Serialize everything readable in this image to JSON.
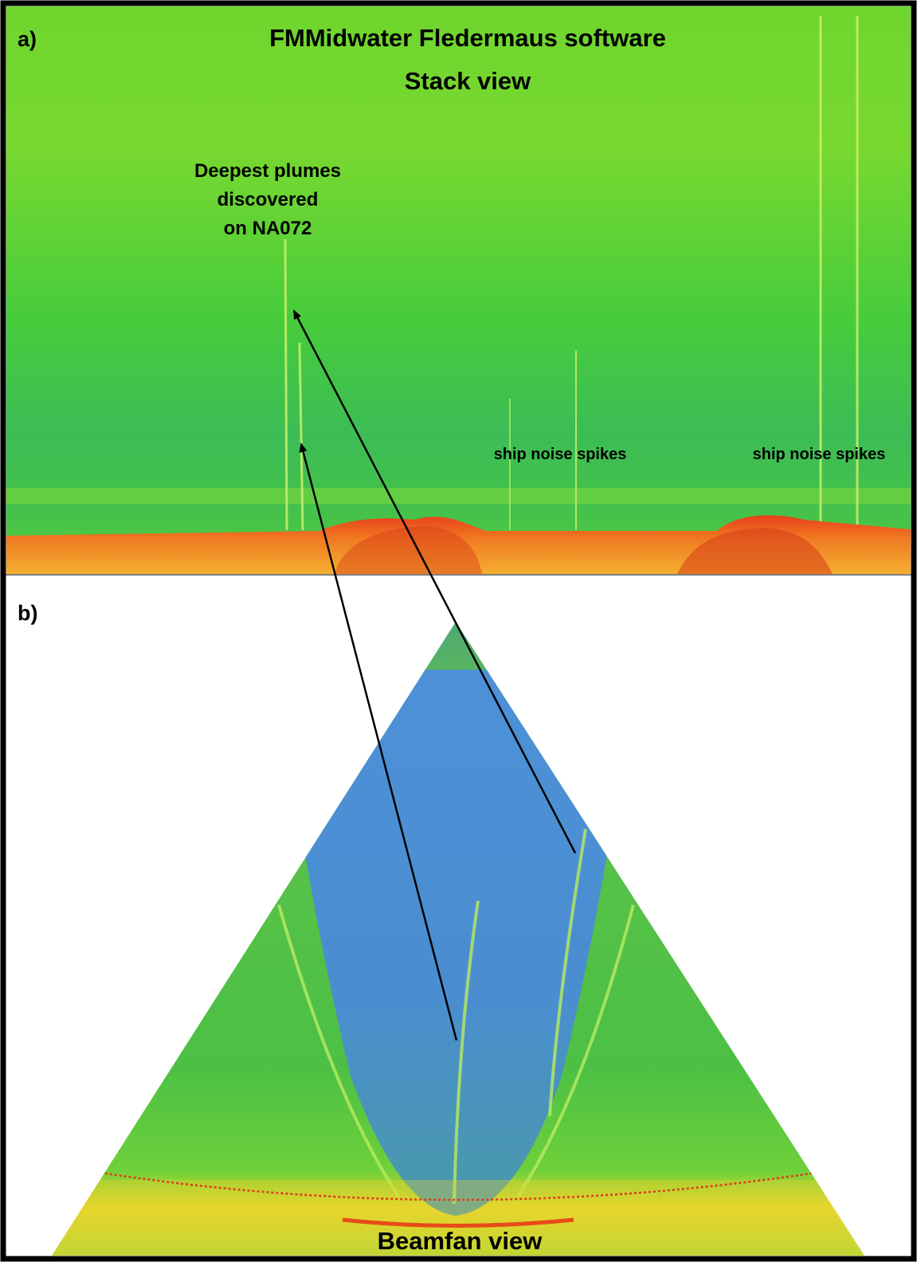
{
  "panel_a": {
    "label": "a)",
    "title_lines": [
      "FMMidwater Fledermaus software",
      "Stack view"
    ],
    "plume_note_lines": [
      "Deepest plumes",
      "discovered",
      "on NA072"
    ],
    "spike_notes": [
      "ship noise spikes",
      "ship noise spikes"
    ]
  },
  "panel_b": {
    "label": "b)",
    "caption": "Beamfan view"
  }
}
